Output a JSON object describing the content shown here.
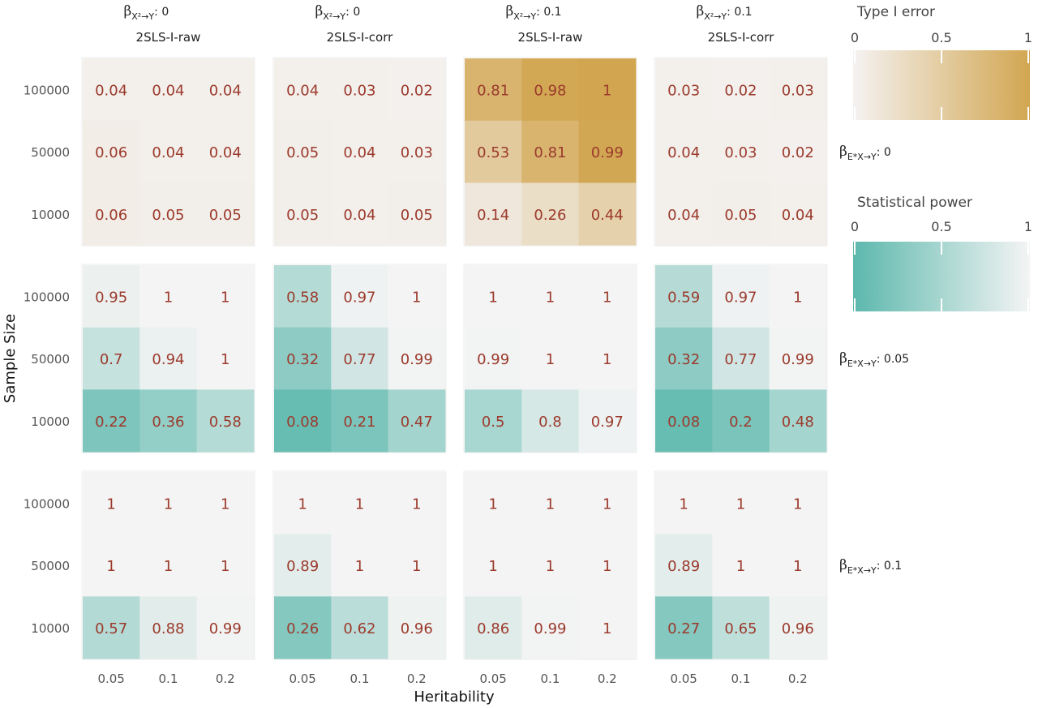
{
  "chart_data": {
    "type": "heatmap",
    "xlabel": "Heritability",
    "ylabel": "Sample Size",
    "x_categories": [
      "0.05",
      "0.1",
      "0.2"
    ],
    "y_categories": [
      "100000",
      "50000",
      "10000"
    ],
    "column_facets": [
      {
        "beta_symbol": "β",
        "beta_sub": "X²→Y",
        "beta_value": ": 0",
        "method": "2SLS-I-raw"
      },
      {
        "beta_symbol": "β",
        "beta_sub": "X²→Y",
        "beta_value": ": 0",
        "method": "2SLS-I-corr"
      },
      {
        "beta_symbol": "β",
        "beta_sub": "X²→Y",
        "beta_value": ": 0.1",
        "method": "2SLS-I-raw"
      },
      {
        "beta_symbol": "β",
        "beta_sub": "X²→Y",
        "beta_value": ": 0.1",
        "method": "2SLS-I-corr"
      }
    ],
    "row_facets": [
      {
        "beta_symbol": "β",
        "beta_sub": "E*X→Y",
        "beta_value": ": 0",
        "scale": "type1"
      },
      {
        "beta_symbol": "β",
        "beta_sub": "E*X→Y",
        "beta_value": ": 0.05",
        "scale": "power"
      },
      {
        "beta_symbol": "β",
        "beta_sub": "E*X→Y",
        "beta_value": ": 0.1",
        "scale": "power"
      }
    ],
    "panels": [
      [
        {
          "values": [
            [
              "0.04",
              "0.04",
              "0.04"
            ],
            [
              "0.06",
              "0.04",
              "0.04"
            ],
            [
              "0.06",
              "0.05",
              "0.05"
            ]
          ]
        },
        {
          "values": [
            [
              "0.04",
              "0.03",
              "0.02"
            ],
            [
              "0.05",
              "0.04",
              "0.03"
            ],
            [
              "0.05",
              "0.04",
              "0.05"
            ]
          ]
        },
        {
          "values": [
            [
              "0.81",
              "0.98",
              "1"
            ],
            [
              "0.53",
              "0.81",
              "0.99"
            ],
            [
              "0.14",
              "0.26",
              "0.44"
            ]
          ]
        },
        {
          "values": [
            [
              "0.03",
              "0.02",
              "0.03"
            ],
            [
              "0.04",
              "0.03",
              "0.02"
            ],
            [
              "0.04",
              "0.05",
              "0.04"
            ]
          ]
        }
      ],
      [
        {
          "values": [
            [
              "0.95",
              "1",
              "1"
            ],
            [
              "0.7",
              "0.94",
              "1"
            ],
            [
              "0.22",
              "0.36",
              "0.58"
            ]
          ]
        },
        {
          "values": [
            [
              "0.58",
              "0.97",
              "1"
            ],
            [
              "0.32",
              "0.77",
              "0.99"
            ],
            [
              "0.08",
              "0.21",
              "0.47"
            ]
          ]
        },
        {
          "values": [
            [
              "1",
              "1",
              "1"
            ],
            [
              "0.99",
              "1",
              "1"
            ],
            [
              "0.5",
              "0.8",
              "0.97"
            ]
          ]
        },
        {
          "values": [
            [
              "0.59",
              "0.97",
              "1"
            ],
            [
              "0.32",
              "0.77",
              "0.99"
            ],
            [
              "0.08",
              "0.2",
              "0.48"
            ]
          ]
        }
      ],
      [
        {
          "values": [
            [
              "1",
              "1",
              "1"
            ],
            [
              "1",
              "1",
              "1"
            ],
            [
              "0.57",
              "0.88",
              "0.99"
            ]
          ]
        },
        {
          "values": [
            [
              "1",
              "1",
              "1"
            ],
            [
              "0.89",
              "1",
              "1"
            ],
            [
              "0.26",
              "0.62",
              "0.96"
            ]
          ]
        },
        {
          "values": [
            [
              "1",
              "1",
              "1"
            ],
            [
              "1",
              "1",
              "1"
            ],
            [
              "0.86",
              "0.99",
              "1"
            ]
          ]
        },
        {
          "values": [
            [
              "1",
              "1",
              "1"
            ],
            [
              "0.89",
              "1",
              "1"
            ],
            [
              "0.27",
              "0.65",
              "0.96"
            ]
          ]
        }
      ]
    ],
    "legends": [
      {
        "id": "type1",
        "title": "Type I error",
        "ticks": [
          "0",
          "0.5",
          "1"
        ],
        "low_color": "#f4f2f1",
        "high_color": "#d2a651"
      },
      {
        "id": "power",
        "title": "Statistical power",
        "ticks": [
          "0",
          "0.5",
          "1"
        ],
        "low_color": "#5cb8ad",
        "high_color": "#f4f4f4"
      }
    ]
  }
}
